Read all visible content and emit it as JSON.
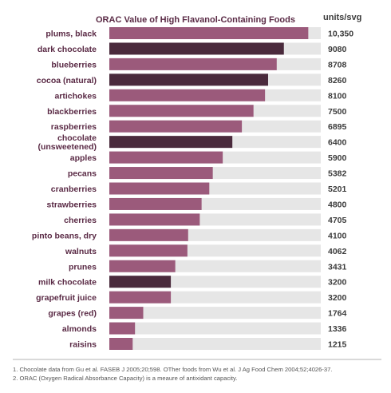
{
  "chart_data": {
    "type": "bar",
    "orientation": "horizontal",
    "title": "ORAC Value of High Flavanol-Containing Foods",
    "unit_label": "units/svg",
    "xlim": [
      0,
      11000
    ],
    "colors": {
      "default": "#9b5a7b",
      "chocolate": "#4a2a3c",
      "track": "#e6e6e6",
      "label": "#5a2a45",
      "value": "#3b3b3b"
    },
    "items": [
      {
        "label": "plums, black",
        "value": 10350,
        "value_label": "10,350",
        "chocolate": false
      },
      {
        "label": "dark chocolate",
        "value": 9080,
        "value_label": "9080",
        "chocolate": true
      },
      {
        "label": "blueberries",
        "value": 8708,
        "value_label": "8708",
        "chocolate": false
      },
      {
        "label": "cocoa (natural)",
        "value": 8260,
        "value_label": "8260",
        "chocolate": true
      },
      {
        "label": "artichokes",
        "value": 8100,
        "value_label": "8100",
        "chocolate": false
      },
      {
        "label": "blackberries",
        "value": 7500,
        "value_label": "7500",
        "chocolate": false
      },
      {
        "label": "raspberries",
        "value": 6895,
        "value_label": "6895",
        "chocolate": false
      },
      {
        "label": [
          "chocolate",
          "(unsweetened)"
        ],
        "value": 6400,
        "value_label": "6400",
        "chocolate": true
      },
      {
        "label": "apples",
        "value": 5900,
        "value_label": "5900",
        "chocolate": false
      },
      {
        "label": "pecans",
        "value": 5382,
        "value_label": "5382",
        "chocolate": false
      },
      {
        "label": "cranberries",
        "value": 5201,
        "value_label": "5201",
        "chocolate": false
      },
      {
        "label": "strawberries",
        "value": 4800,
        "value_label": "4800",
        "chocolate": false
      },
      {
        "label": "cherries",
        "value": 4705,
        "value_label": "4705",
        "chocolate": false
      },
      {
        "label": "pinto beans, dry",
        "value": 4100,
        "value_label": "4100",
        "chocolate": false
      },
      {
        "label": "walnuts",
        "value": 4062,
        "value_label": "4062",
        "chocolate": false
      },
      {
        "label": "prunes",
        "value": 3431,
        "value_label": "3431",
        "chocolate": false
      },
      {
        "label": "milk chocolate",
        "value": 3200,
        "value_label": "3200",
        "chocolate": true
      },
      {
        "label": "grapefruit juice",
        "value": 3200,
        "value_label": "3200",
        "chocolate": false
      },
      {
        "label": "grapes (red)",
        "value": 1764,
        "value_label": "1764",
        "chocolate": false
      },
      {
        "label": "almonds",
        "value": 1336,
        "value_label": "1336",
        "chocolate": false
      },
      {
        "label": "raisins",
        "value": 1215,
        "value_label": "1215",
        "chocolate": false
      }
    ]
  },
  "footnotes": [
    "1. Chocolate data from Gu et al. FASEB J 2005;20;598. OTher foods from Wu et al. J Ag Food Chem 2004;52;4026-37.",
    "2. ORAC (Oxygen Radical Absorbance Capacity) is a meaure of antixidant capacity."
  ]
}
